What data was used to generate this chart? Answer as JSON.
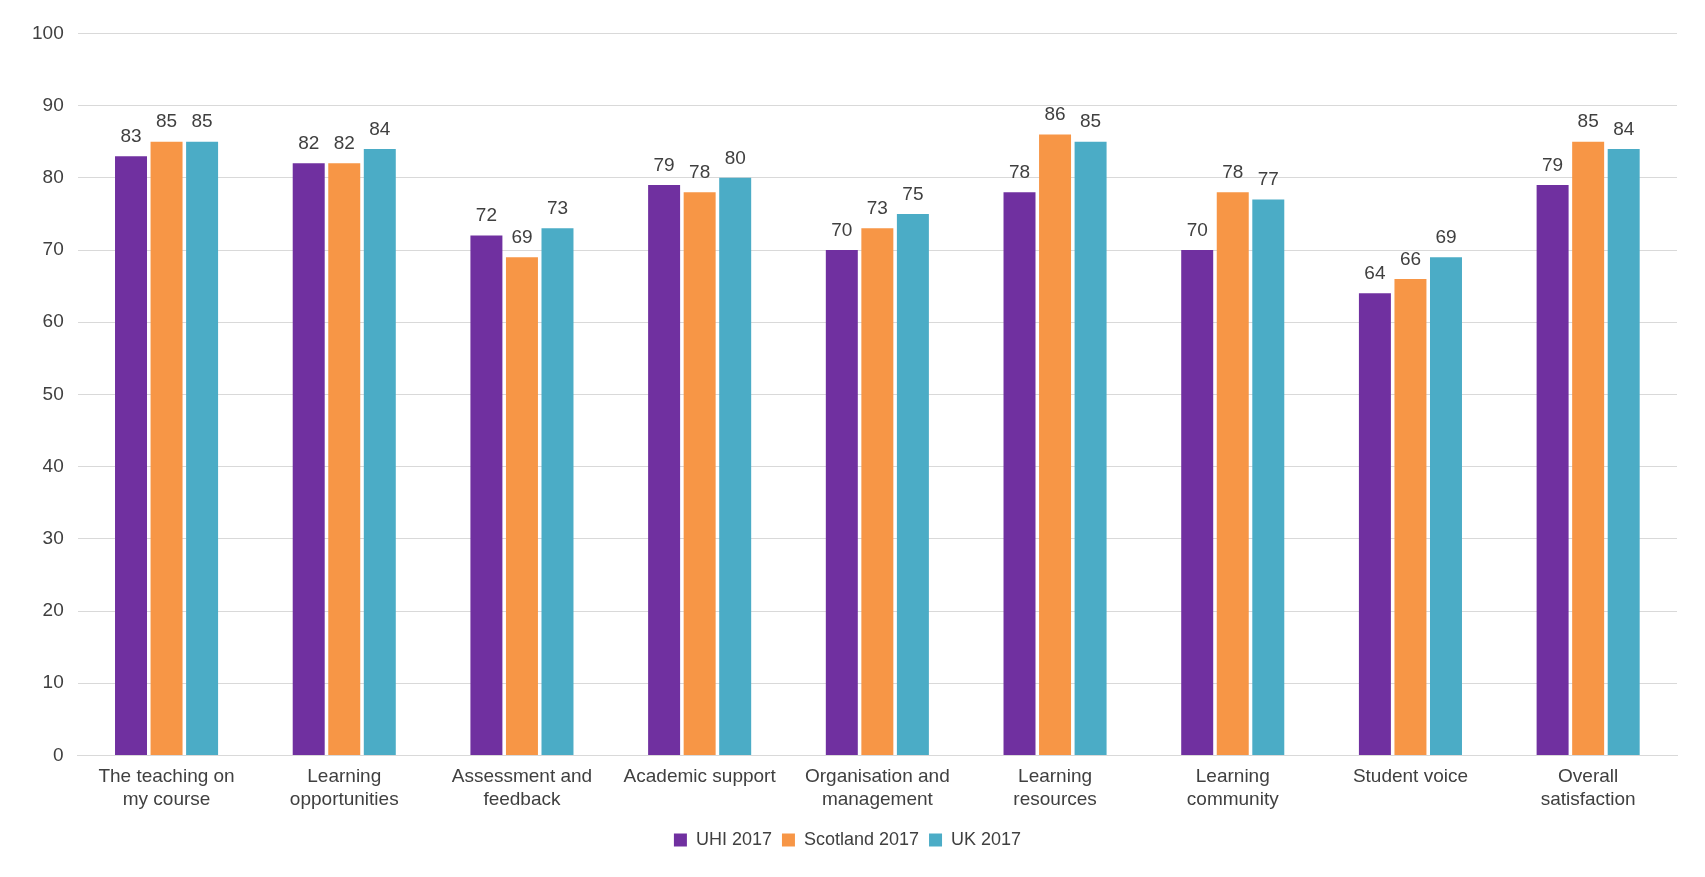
{
  "chart_data": {
    "type": "bar",
    "categories": [
      "The teaching on my course",
      "Learning opportunities",
      "Assessment and feedback",
      "Academic support",
      "Organisation and management",
      "Learning resources",
      "Learning community",
      "Student voice",
      "Overall satisfaction"
    ],
    "series": [
      {
        "name": "UHI 2017",
        "color": "#7030a0",
        "values": [
          83,
          82,
          72,
          79,
          70,
          78,
          70,
          64,
          79
        ]
      },
      {
        "name": "Scotland 2017",
        "color": "#f79646",
        "values": [
          85,
          82,
          69,
          78,
          73,
          86,
          78,
          66,
          85
        ]
      },
      {
        "name": "UK 2017",
        "color": "#4bacc6",
        "values": [
          85,
          84,
          73,
          80,
          75,
          85,
          77,
          69,
          84
        ]
      }
    ],
    "ylim": [
      0,
      100
    ],
    "yticks": [
      0,
      10,
      20,
      30,
      40,
      50,
      60,
      70,
      80,
      90,
      100
    ],
    "grid": "y",
    "legend": "bottom",
    "data_labels": true
  }
}
